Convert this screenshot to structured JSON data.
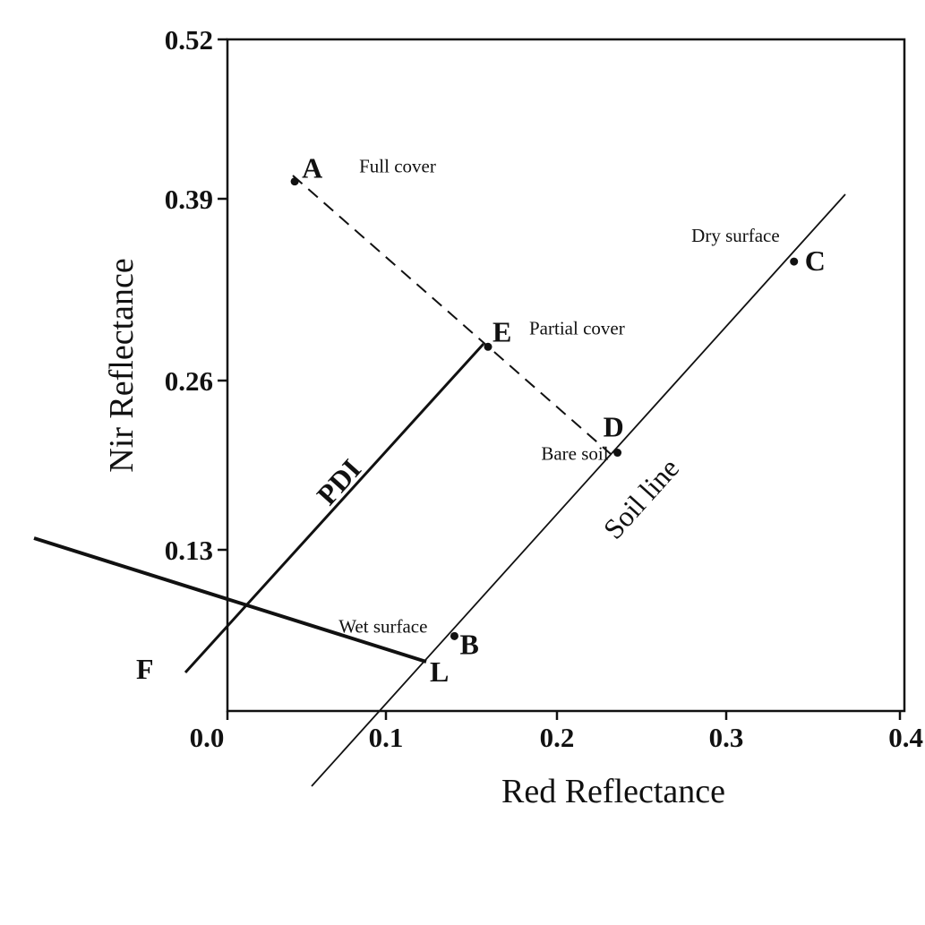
{
  "chart_data": {
    "type": "scatter",
    "title": "",
    "xlabel": "Red Reflectance",
    "ylabel": "Nir Reflectance",
    "xlim": [
      0.0,
      0.4
    ],
    "ylim": [
      0.0,
      0.52
    ],
    "x_ticks": [
      "0.0",
      "0.1",
      "0.2",
      "0.3",
      "0.4"
    ],
    "y_ticks": [
      "0.13",
      "0.26",
      "0.39",
      "0.52"
    ],
    "points": [
      {
        "label": "A",
        "annotation": "Full cover",
        "x": 0.04,
        "y": 0.41
      },
      {
        "label": "E",
        "annotation": "Partial cover",
        "x": 0.155,
        "y": 0.282
      },
      {
        "label": "D",
        "annotation": "Bare soil",
        "x": 0.232,
        "y": 0.2
      },
      {
        "label": "B",
        "annotation": "Wet surface",
        "x": 0.135,
        "y": 0.058
      },
      {
        "label": "C",
        "annotation": "Dry surface",
        "x": 0.337,
        "y": 0.348
      }
    ],
    "lines": [
      {
        "name": "Soil line",
        "from": [
          0.052,
          -0.057
        ],
        "to": [
          0.37,
          0.4
        ]
      },
      {
        "name": "PDI",
        "from": "F",
        "to": "E"
      },
      {
        "name": "",
        "from": "F",
        "to": "L"
      },
      {
        "name": "",
        "from": "A",
        "to": "D",
        "style": "dashed"
      }
    ],
    "outside_points": {
      "F": "F",
      "L": "L"
    },
    "grid": false,
    "legend": "none"
  }
}
